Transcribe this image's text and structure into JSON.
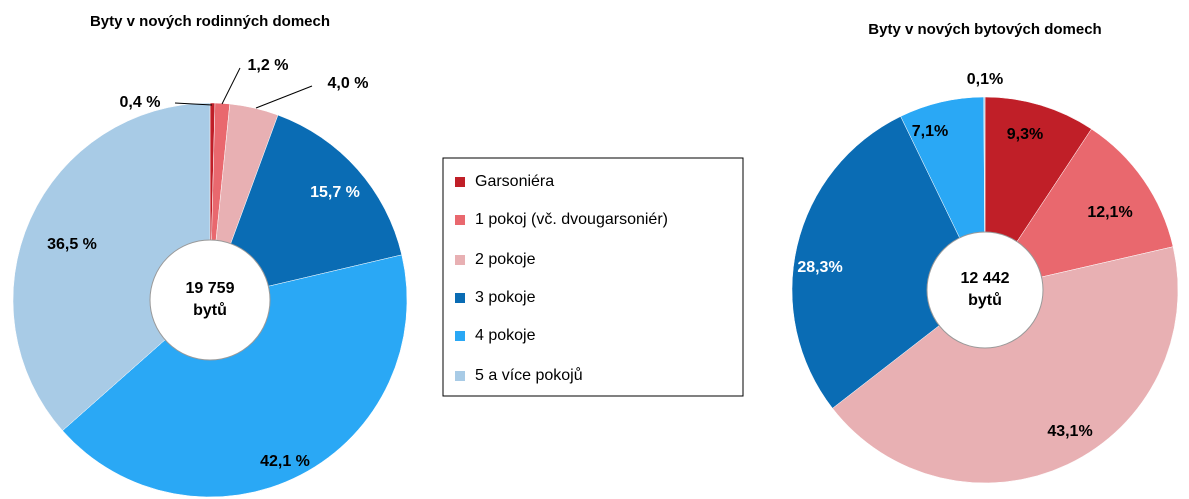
{
  "chart_data": [
    {
      "type": "pie",
      "title": "Byty v nových rodinných domech",
      "center_label": [
        "19 759",
        "bytů"
      ],
      "values": [
        0.4,
        1.2,
        4.0,
        15.7,
        42.1,
        36.5
      ],
      "value_labels": [
        "0,4 %",
        "1,2 %",
        "4,0 %",
        "15,7 %",
        "42,1 %",
        "36,5 %"
      ]
    },
    {
      "type": "pie",
      "title": "Byty v nových bytových domech",
      "center_label": [
        "12 442",
        "bytů"
      ],
      "values": [
        9.3,
        12.1,
        43.1,
        28.3,
        7.1,
        0.1
      ],
      "value_labels": [
        "9,3%",
        "12,1%",
        "43,1%",
        "28,3%",
        "7,1%",
        "0,1%"
      ]
    }
  ],
  "legend": {
    "categories": [
      "Garsoniéra",
      "1 pokoj (vč. dvougarsoniér)",
      "2 pokoje",
      "3 pokoje",
      "4 pokoje",
      "5 a více pokojů"
    ],
    "colors": [
      "#c01f28",
      "#e9686e",
      "#e8b0b3",
      "#0a6cb4",
      "#2aa8f5",
      "#a8cbe6"
    ]
  }
}
